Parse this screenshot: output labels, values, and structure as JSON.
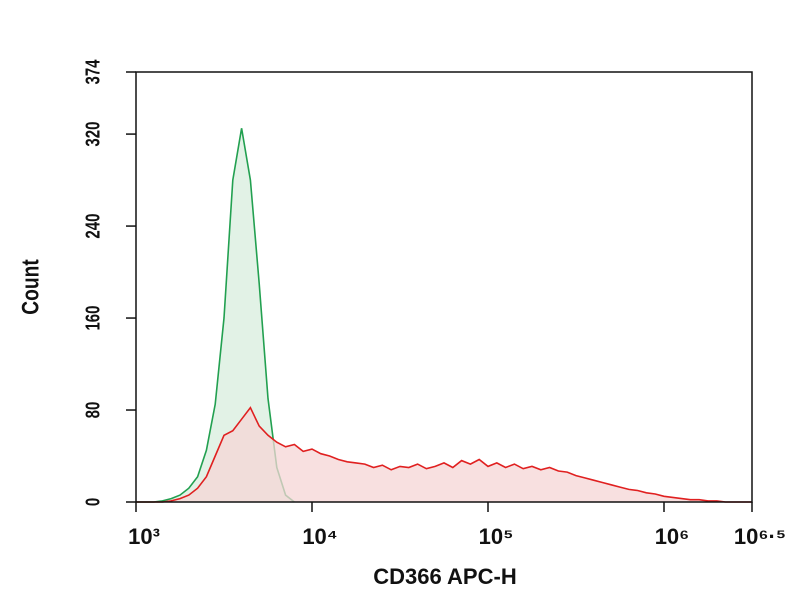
{
  "chart_data": {
    "type": "line",
    "xlabel": "CD366 APC-H",
    "ylabel": "Count",
    "xscale": "log",
    "xlim": [
      1000,
      3162278
    ],
    "ylim": [
      0,
      374
    ],
    "xticks": [
      {
        "value": 1000,
        "label": "10³"
      },
      {
        "value": 10000,
        "label": "10⁴"
      },
      {
        "value": 100000,
        "label": "10⁵"
      },
      {
        "value": 1000000,
        "label": "10⁶"
      },
      {
        "value": 3162278,
        "label": "10⁶·⁵"
      }
    ],
    "yticks": [
      0,
      80,
      160,
      240,
      320,
      374
    ],
    "fill": true,
    "x": [
      1000,
      1122,
      1259,
      1413,
      1585,
      1778,
      1995,
      2239,
      2512,
      2818,
      3162,
      3548,
      3981,
      4467,
      5012,
      5623,
      6310,
      7079,
      7943,
      8913,
      10000,
      11220,
      12589,
      14125,
      15849,
      17783,
      19953,
      22387,
      25119,
      28184,
      31623,
      35481,
      39811,
      44668,
      50119,
      56234,
      63096,
      70795,
      79433,
      89125,
      100000,
      112202,
      125893,
      141254,
      158489,
      177828,
      199526,
      223872,
      251189,
      281838,
      316228,
      354813,
      398107,
      446684,
      501187,
      562341,
      630957,
      707946,
      794328,
      891251,
      1000000,
      1122018,
      1258925,
      1412538,
      1584893,
      1778279,
      1995262,
      2238721,
      2511886,
      2818383,
      3162278
    ],
    "series": [
      {
        "color": "#22a050",
        "fill_color": "#d8eedd",
        "values": [
          0,
          0,
          0,
          1,
          3,
          6,
          12,
          22,
          45,
          85,
          160,
          280,
          325,
          280,
          190,
          90,
          30,
          6,
          0,
          null,
          null,
          null,
          null,
          null,
          null,
          null,
          null,
          null,
          null,
          null,
          null,
          null,
          null,
          null,
          null,
          null,
          null,
          null,
          null,
          null,
          null,
          null,
          null,
          null,
          null,
          null,
          null,
          null,
          null,
          null,
          null,
          null,
          null,
          null,
          null,
          null,
          null,
          null,
          null,
          null,
          null,
          null,
          null,
          null,
          null,
          null,
          null,
          null,
          null,
          null,
          null
        ]
      },
      {
        "color": "#e02020",
        "fill_color": "#f6d6d6",
        "values": [
          0,
          0,
          0,
          0,
          1,
          3,
          6,
          12,
          22,
          40,
          58,
          62,
          72,
          82,
          66,
          58,
          52,
          48,
          50,
          44,
          46,
          42,
          40,
          37,
          35,
          34,
          33,
          30,
          32,
          28,
          31,
          30,
          33,
          29,
          31,
          34,
          30,
          36,
          33,
          37,
          31,
          34,
          30,
          33,
          29,
          31,
          28,
          30,
          27,
          26,
          23,
          21,
          19,
          17,
          15,
          13,
          11,
          10,
          8,
          7,
          5,
          4,
          3,
          2,
          2,
          1,
          1,
          0,
          0,
          0,
          0
        ]
      }
    ]
  }
}
